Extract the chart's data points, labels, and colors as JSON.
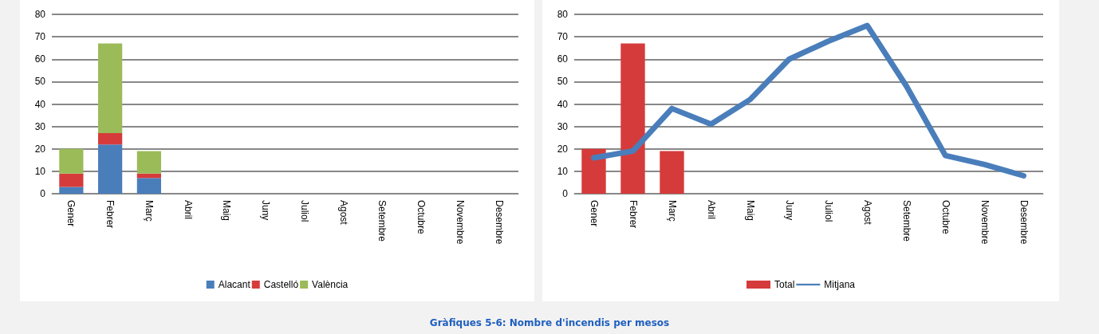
{
  "chart_data": [
    {
      "type": "bar",
      "stacked": true,
      "categories": [
        "Gener",
        "Febrer",
        "Març",
        "Abril",
        "Maig",
        "Juny",
        "Juliol",
        "Agost",
        "Setembre",
        "Octubre",
        "Novembre",
        "Desembre"
      ],
      "series": [
        {
          "name": "Alacant",
          "color": "#4a7ebb",
          "values": [
            3,
            22,
            7,
            null,
            null,
            null,
            null,
            null,
            null,
            null,
            null,
            null
          ]
        },
        {
          "name": "Castelló",
          "color": "#d63b3b",
          "values": [
            6,
            5,
            2,
            null,
            null,
            null,
            null,
            null,
            null,
            null,
            null,
            null
          ]
        },
        {
          "name": "València",
          "color": "#9bbb59",
          "values": [
            11,
            40,
            10,
            null,
            null,
            null,
            null,
            null,
            null,
            null,
            null,
            null
          ]
        }
      ],
      "ylim": [
        0,
        80
      ],
      "yticks": [
        0,
        10,
        20,
        30,
        40,
        50,
        60,
        70,
        80
      ],
      "grid": "y",
      "legend": "bottom",
      "annotations": [
        "Gràfiques 5-6: Nombre d'incendis per mesos"
      ]
    },
    {
      "type": "bar",
      "categories": [
        "Gener",
        "Febrer",
        "Març",
        "Abril",
        "Maig",
        "Juny",
        "Juliol",
        "Agost",
        "Setembre",
        "Octubre",
        "Novembre",
        "Desembre"
      ],
      "series": [
        {
          "name": "Total",
          "color": "#d63b3b",
          "values": [
            20,
            67,
            19,
            null,
            null,
            null,
            null,
            null,
            null,
            null,
            null,
            null
          ]
        },
        {
          "name": "Mitjana",
          "type": "line",
          "color": "#4a7ebb",
          "values": [
            16,
            19,
            38,
            31,
            42,
            60,
            68,
            75,
            48,
            17,
            13,
            8
          ]
        }
      ],
      "ylim": [
        0,
        80
      ],
      "yticks": [
        0,
        10,
        20,
        30,
        40,
        50,
        60,
        70,
        80
      ],
      "grid": "y",
      "legend": "bottom",
      "marker": "none"
    }
  ]
}
